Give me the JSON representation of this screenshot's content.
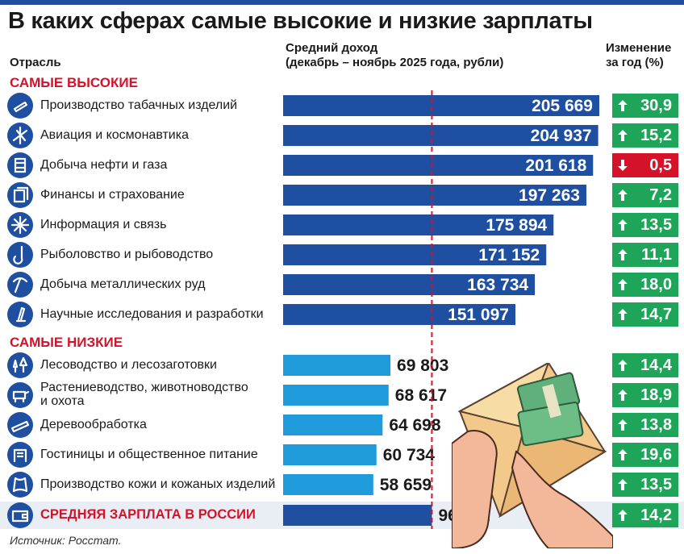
{
  "title": "В каких сферах самые высокие и низкие зарплаты",
  "headers": {
    "industry": "Отрасль",
    "income_line1": "Средний доход",
    "income_line2": "(декабрь – ноябрь 2025 года, рубли)",
    "change_line1": "Изменение",
    "change_line2": "за год (%)"
  },
  "sections": {
    "highest": "САМЫЕ ВЫСОКИЕ",
    "lowest": "САМЫЕ НИЗКИЕ"
  },
  "source": "Источник: Росстат.",
  "colors": {
    "dark_bar": "#1e4fa0",
    "light_bar": "#1f9bdc",
    "up": "#1ea55a",
    "down": "#d4122a",
    "accent": "#d4122a"
  },
  "chart_data": {
    "type": "bar",
    "orientation": "horizontal",
    "reference_line": {
      "label": "СРЕДНЯЯ ЗАРПЛАТА В РОССИИ",
      "value": 96772,
      "change": "14,2",
      "direction": "up"
    },
    "rows": [
      {
        "group": "high",
        "label": "Производство табачных изделий",
        "value": 205669,
        "value_text": "205 669",
        "change": "30,9",
        "direction": "up",
        "icon": "cigarette-icon"
      },
      {
        "group": "high",
        "label": "Авиация и космонавтика",
        "value": 204937,
        "value_text": "204 937",
        "change": "15,2",
        "direction": "up",
        "icon": "airplane-icon"
      },
      {
        "group": "high",
        "label": "Добыча нефти и газа",
        "value": 201618,
        "value_text": "201 618",
        "change": "0,5",
        "direction": "down",
        "icon": "oil-barrel-icon"
      },
      {
        "group": "high",
        "label": "Финансы и страхование",
        "value": 197263,
        "value_text": "197 263",
        "change": "7,2",
        "direction": "up",
        "icon": "money-icon"
      },
      {
        "group": "high",
        "label": "Информация и связь",
        "value": 175894,
        "value_text": "175 894",
        "change": "13,5",
        "direction": "up",
        "icon": "network-icon"
      },
      {
        "group": "high",
        "label": "Рыболовство и рыбоводство",
        "value": 171152,
        "value_text": "171 152",
        "change": "11,1",
        "direction": "up",
        "icon": "fish-hook-icon"
      },
      {
        "group": "high",
        "label": "Добыча металлических руд",
        "value": 163734,
        "value_text": "163 734",
        "change": "18,0",
        "direction": "up",
        "icon": "pickaxe-icon"
      },
      {
        "group": "high",
        "label": "Научные исследования и разработки",
        "value": 151097,
        "value_text": "151 097",
        "change": "14,7",
        "direction": "up",
        "icon": "microscope-icon"
      },
      {
        "group": "low",
        "label": "Лесоводство и лесозаготовки",
        "value": 69803,
        "value_text": "69 803",
        "change": "14,4",
        "direction": "up",
        "icon": "trees-icon"
      },
      {
        "group": "low",
        "label": "Растениеводство, животноводство\nи охота",
        "value": 68617,
        "value_text": "68 617",
        "change": "18,9",
        "direction": "up",
        "icon": "cow-icon"
      },
      {
        "group": "low",
        "label": "Деревообработка",
        "value": 64698,
        "value_text": "64 698",
        "change": "13,8",
        "direction": "up",
        "icon": "saw-icon"
      },
      {
        "group": "low",
        "label": "Гостиницы и общественное питание",
        "value": 60734,
        "value_text": "60 734",
        "change": "19,6",
        "direction": "up",
        "icon": "hotel-icon"
      },
      {
        "group": "low",
        "label": "Производство кожи и кожаных изделий",
        "value": 58659,
        "value_text": "58 659",
        "change": "13,5",
        "direction": "up",
        "icon": "leather-icon"
      },
      {
        "group": "avg",
        "label": "СРЕДНЯЯ ЗАРПЛАТА В РОССИИ",
        "value": 96772,
        "value_text": "96 772",
        "change": "14,2",
        "direction": "up",
        "icon": "wallet-icon"
      }
    ]
  }
}
